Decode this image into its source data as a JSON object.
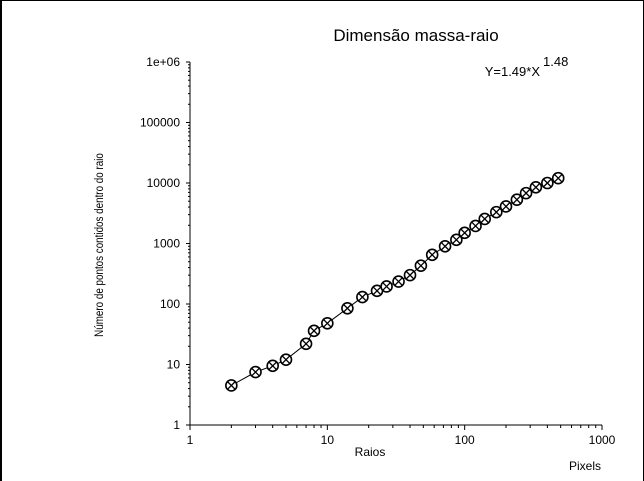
{
  "chart_data": {
    "type": "scatter",
    "title": "Dimensão massa-raio",
    "xlabel": "Raios",
    "xunit": "Pixels",
    "ylabel": "Número de pontos contidos dentro do raio",
    "xscale": "log",
    "yscale": "log",
    "xlim": [
      1,
      1000
    ],
    "ylim": [
      1,
      1000000
    ],
    "x_ticks": [
      "1",
      "10",
      "100",
      "1000"
    ],
    "y_ticks": [
      "1",
      "10",
      "100",
      "1000",
      "10000",
      "100000",
      "1e+06"
    ],
    "annotation": {
      "text": "Y=1.49*X",
      "exponent": "1.48"
    },
    "grid": false,
    "marker": "circle-x",
    "series": [
      {
        "x": [
          2,
          3,
          4,
          5,
          7,
          8,
          10,
          14,
          18,
          23,
          27,
          33,
          40,
          48,
          58,
          72,
          87,
          100,
          120,
          140,
          170,
          200,
          240,
          280,
          330,
          400,
          480
        ],
        "y": [
          4.5,
          7.5,
          9.5,
          12,
          22,
          36,
          48,
          85,
          130,
          165,
          195,
          235,
          300,
          430,
          650,
          900,
          1150,
          1500,
          1950,
          2550,
          3300,
          4100,
          5300,
          6800,
          8500,
          10000,
          12000
        ]
      }
    ]
  }
}
